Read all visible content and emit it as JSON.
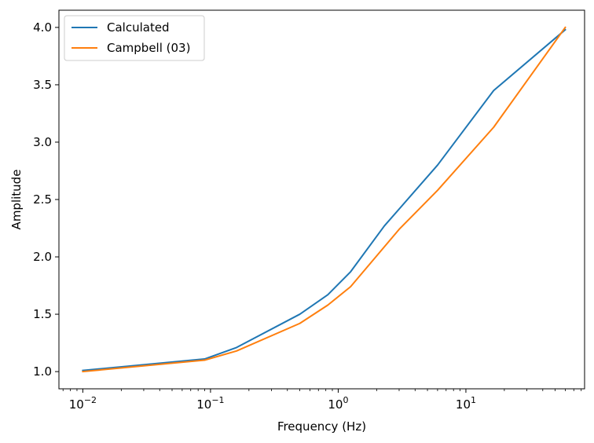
{
  "chart_data": {
    "type": "line",
    "xscale": "log",
    "xlabel": "Frequency (Hz)",
    "ylabel": "Amplitude",
    "xlim": [
      0.0065,
      85
    ],
    "ylim": [
      0.85,
      4.15
    ],
    "x_tick_values": [
      0.01,
      0.1,
      1,
      10
    ],
    "x_tick_labels": [
      {
        "base": "10",
        "exp": "−2"
      },
      {
        "base": "10",
        "exp": "−1"
      },
      {
        "base": "10",
        "exp": "0"
      },
      {
        "base": "10",
        "exp": "1"
      }
    ],
    "y_ticks": [
      1.0,
      1.5,
      2.0,
      2.5,
      3.0,
      3.5,
      4.0
    ],
    "y_tick_labels": [
      "1.0",
      "1.5",
      "2.0",
      "2.5",
      "3.0",
      "3.5",
      "4.0"
    ],
    "legend_position": "top-left",
    "series": [
      {
        "name": "Calculated",
        "color": "#1f77b4",
        "x": [
          0.01,
          0.09,
          0.16,
          0.5,
          0.83,
          1.25,
          2.3,
          6,
          16.5,
          60
        ],
        "y": [
          1.01,
          1.11,
          1.21,
          1.5,
          1.67,
          1.87,
          2.27,
          2.8,
          3.45,
          3.98
        ]
      },
      {
        "name": "Campbell (03)",
        "color": "#ff7f0e",
        "x": [
          0.01,
          0.09,
          0.16,
          0.5,
          0.83,
          1.25,
          3,
          6,
          16.5,
          60
        ],
        "y": [
          1.0,
          1.1,
          1.18,
          1.42,
          1.58,
          1.74,
          2.24,
          2.58,
          3.13,
          4.0
        ]
      }
    ]
  }
}
